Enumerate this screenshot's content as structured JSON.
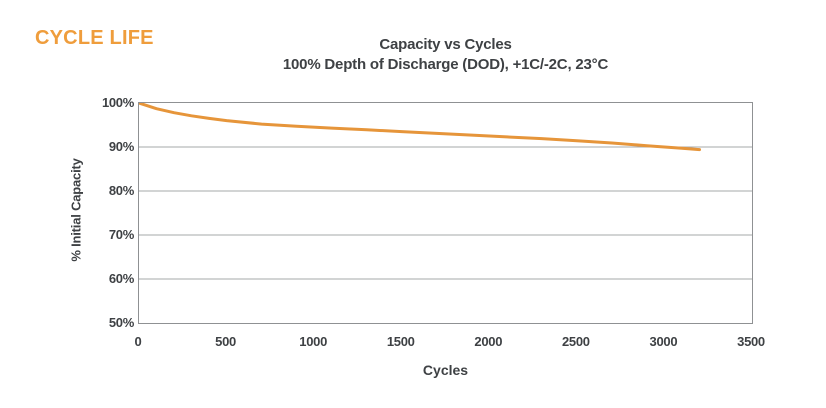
{
  "header": {
    "label": "CYCLE LIFE",
    "color": "#ef9d3c"
  },
  "colors": {
    "accent_orange": "#e6953a",
    "text_dark": "#3e4144",
    "plot_border": "#8f9193",
    "gridline": "#a6a8aa",
    "background": "#ffffff"
  },
  "chart_data": {
    "type": "line",
    "title": "Capacity vs Cycles",
    "subtitle": "100% Depth of Discharge (DOD), +1C/-2C, 23°C",
    "xlabel": "Cycles",
    "ylabel": "% Initial Capacity",
    "xlim": [
      0,
      3500
    ],
    "ylim": [
      50,
      100
    ],
    "x_ticks": [
      0,
      500,
      1000,
      1500,
      2000,
      2500,
      3000,
      3500
    ],
    "y_ticks": [
      100,
      90,
      80,
      70,
      60,
      50
    ],
    "y_tick_suffix": "%",
    "grid": "horizontal",
    "legend": "none",
    "line_color": "#e6953a",
    "line_width": 3,
    "series": [
      {
        "name": "capacity-retention",
        "x": [
          0,
          100,
          200,
          300,
          400,
          500,
          700,
          900,
          1100,
          1300,
          1500,
          1700,
          1900,
          2100,
          2300,
          2500,
          2700,
          2900,
          3000,
          3100,
          3200
        ],
        "y": [
          100,
          98.7,
          97.8,
          97.1,
          96.5,
          96.0,
          95.2,
          94.7,
          94.3,
          93.9,
          93.5,
          93.1,
          92.7,
          92.3,
          91.9,
          91.4,
          90.9,
          90.3,
          90.0,
          89.7,
          89.4
        ]
      }
    ]
  }
}
